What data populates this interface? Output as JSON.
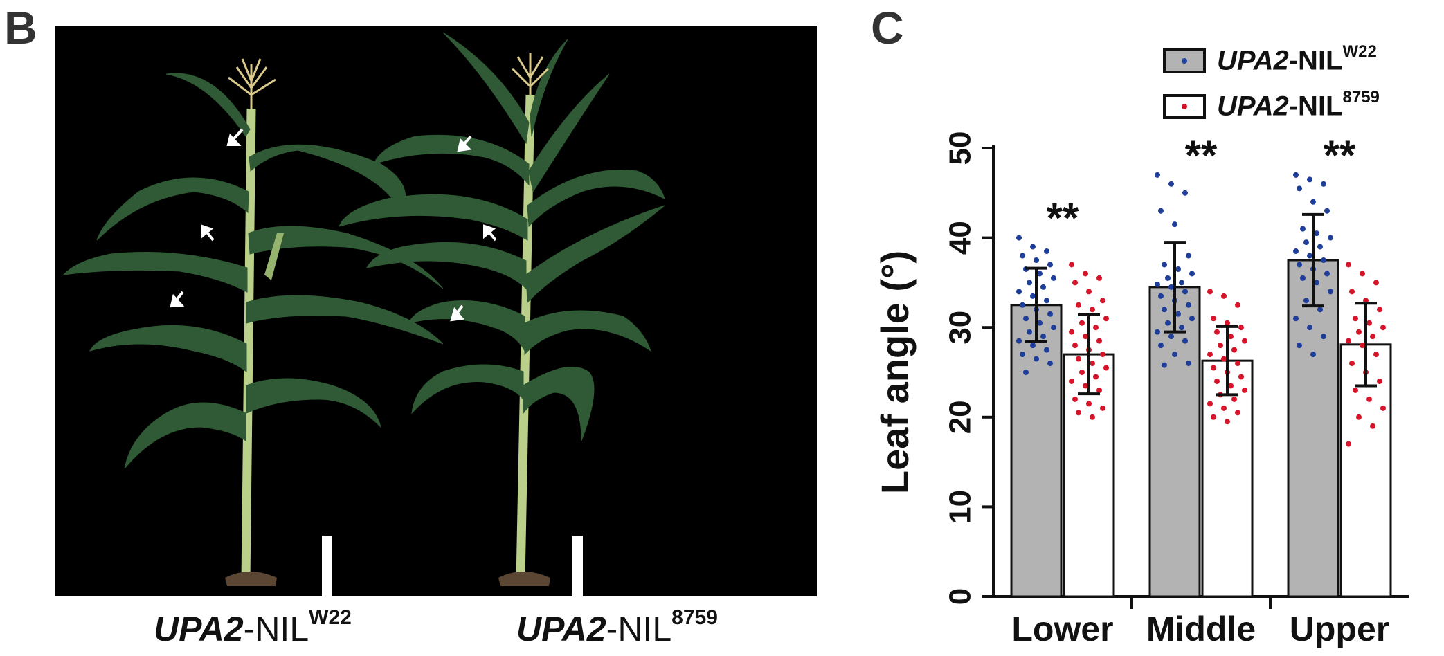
{
  "panels": {
    "left_letter": "B",
    "right_letter": "C"
  },
  "plants": [
    {
      "gene": "UPA2",
      "suffix": "-NIL",
      "sup": "W22"
    },
    {
      "gene": "UPA2",
      "suffix": "-NIL",
      "sup": "8759"
    }
  ],
  "colors": {
    "w22_bar": "#b3b3b3",
    "nil8759_bar": "#ffffff",
    "w22_dots": "#1f3e9a",
    "nil8759_dots": "#d6152b",
    "photo_background": "#000000",
    "leaf": "#2f5a35",
    "tassel": "#d9c98a",
    "scale_bar": "#ffffff",
    "arrow": "#ffffff"
  },
  "legend": [
    {
      "gene": "UPA2",
      "suffix": "-NIL",
      "sup": "W22"
    },
    {
      "gene": "UPA2",
      "suffix": "-NIL",
      "sup": "8759"
    }
  ],
  "chart_data": {
    "type": "bar",
    "ylabel": "Leaf angle (°)",
    "ylim": [
      0,
      50
    ],
    "yticks": [
      0,
      10,
      20,
      30,
      40,
      50
    ],
    "categories": [
      "Lower",
      "Middle",
      "Upper"
    ],
    "significance": [
      "**",
      "**",
      "**"
    ],
    "series": [
      {
        "name": "UPA2-NIL W22",
        "values": [
          32.5,
          34.5,
          37.5
        ],
        "sd": [
          4.1,
          5.0,
          5.1
        ],
        "points": [
          [
            40,
            39,
            38.5,
            38,
            37.5,
            37,
            36.5,
            36,
            35.5,
            35,
            34.5,
            34,
            33.5,
            33,
            32.5,
            32,
            31.5,
            31,
            30.5,
            30,
            29.5,
            29,
            28.5,
            28,
            27.5,
            27,
            26.5,
            26,
            25
          ],
          [
            47,
            46,
            45,
            43,
            41.5,
            38,
            37,
            36.5,
            36,
            35.5,
            35,
            34.8,
            34.5,
            34,
            33.5,
            33,
            32.5,
            32,
            31.5,
            31,
            30.5,
            30,
            29.5,
            29,
            28.5,
            28,
            27,
            26,
            25.8
          ],
          [
            47,
            46.5,
            46,
            45.5,
            44,
            43,
            41,
            40.5,
            40,
            39.5,
            39,
            38.5,
            38,
            37.5,
            37,
            36.5,
            36,
            35.5,
            35,
            34,
            33,
            32,
            31,
            30,
            29,
            28,
            27
          ]
        ]
      },
      {
        "name": "UPA2-NIL 8759",
        "values": [
          27.0,
          26.3,
          28.1
        ],
        "sd": [
          4.4,
          3.8,
          4.6
        ],
        "points": [
          [
            37,
            36,
            35.5,
            35,
            34,
            33,
            32.5,
            32,
            31,
            30.5,
            30,
            29.5,
            29,
            28.5,
            28,
            27.5,
            27,
            26.5,
            26,
            25.5,
            25,
            24.5,
            24,
            23.5,
            23,
            22,
            21.5,
            21,
            20.5,
            20
          ],
          [
            34,
            33.5,
            32.5,
            31,
            30.5,
            30,
            29.5,
            29,
            28.5,
            28,
            27.5,
            27,
            26.5,
            26,
            25.5,
            25,
            24.5,
            24,
            23.5,
            23,
            22.5,
            22,
            21.5,
            21,
            20.5,
            20,
            19.5
          ],
          [
            37,
            36,
            35,
            34,
            33,
            32,
            31,
            30.5,
            30,
            29.5,
            29,
            28.5,
            28,
            27,
            26,
            25,
            24,
            23,
            22,
            21,
            20,
            19,
            17
          ]
        ]
      }
    ]
  }
}
